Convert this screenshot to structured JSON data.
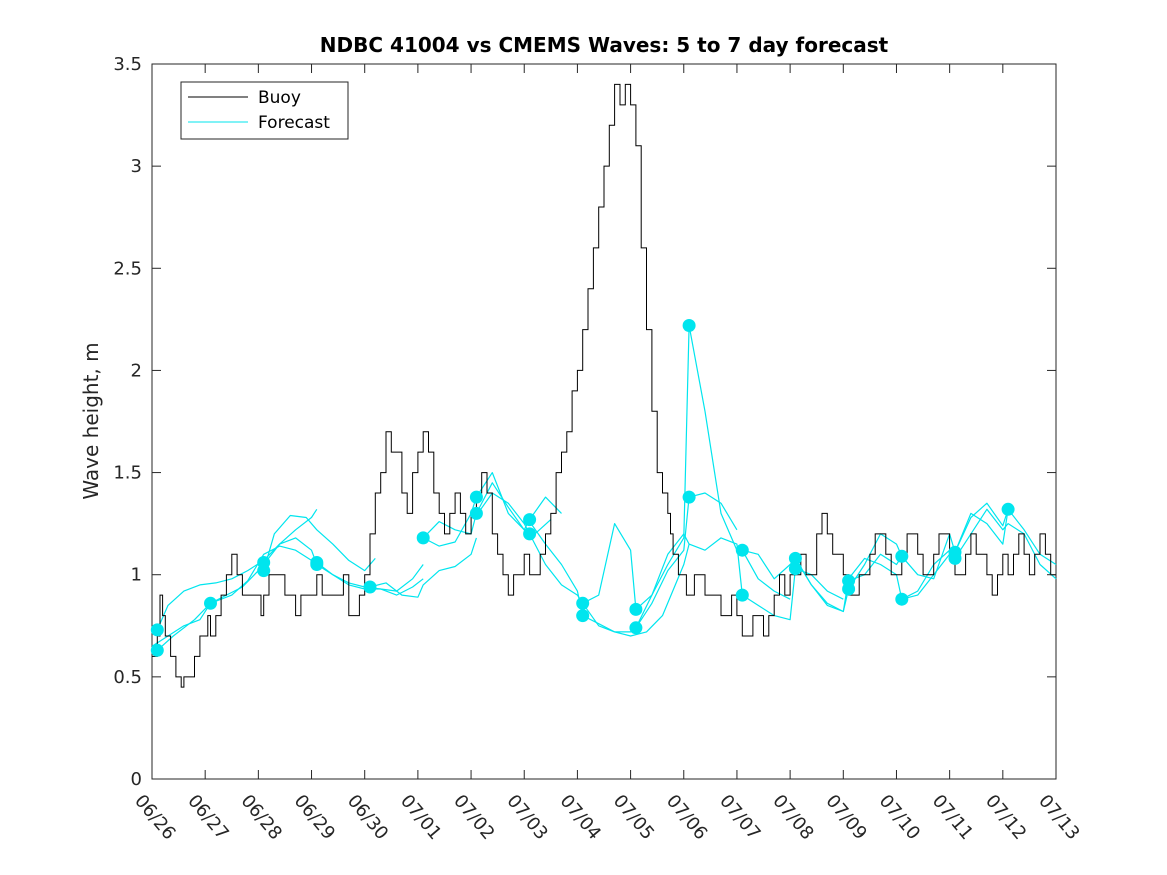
{
  "chart_data": {
    "type": "line",
    "title": "NDBC 41004 vs CMEMS Waves: 5 to 7 day forecast",
    "xlabel": "",
    "ylabel": "Wave height, m",
    "ylim": [
      0,
      3.5
    ],
    "yticks": [
      0,
      0.5,
      1,
      1.5,
      2,
      2.5,
      3,
      3.5
    ],
    "ytick_labels": [
      "0",
      "0.5",
      "1",
      "1.5",
      "2",
      "2.5",
      "3",
      "3.5"
    ],
    "x_unit": "days (06/26 = day 0)",
    "xlim": [
      0,
      17
    ],
    "xtick_labels": [
      "06/26",
      "06/27",
      "06/28",
      "06/29",
      "06/30",
      "07/01",
      "07/02",
      "07/03",
      "07/04",
      "07/05",
      "07/06",
      "07/07",
      "07/08",
      "07/09",
      "07/10",
      "07/11",
      "07/12",
      "07/13"
    ],
    "grid": false,
    "legend": {
      "position": "top-left",
      "entries": [
        "Buoy",
        "Forecast"
      ]
    },
    "colors": {
      "buoy": "#000000",
      "forecast": "#00e5ee",
      "axis": "#262626"
    },
    "buoy": {
      "name": "Buoy",
      "x": [
        0,
        0.1,
        0.15,
        0.2,
        0.25,
        0.35,
        0.45,
        0.5,
        0.55,
        0.6,
        0.7,
        0.8,
        0.9,
        1.0,
        1.05,
        1.1,
        1.2,
        1.3,
        1.4,
        1.5,
        1.6,
        1.7,
        1.8,
        1.9,
        2.0,
        2.05,
        2.1,
        2.2,
        2.3,
        2.4,
        2.5,
        2.6,
        2.7,
        2.8,
        2.9,
        3.0,
        3.1,
        3.2,
        3.3,
        3.4,
        3.5,
        3.6,
        3.7,
        3.8,
        3.9,
        4.0,
        4.1,
        4.2,
        4.3,
        4.4,
        4.5,
        4.6,
        4.7,
        4.8,
        4.9,
        5.0,
        5.1,
        5.2,
        5.3,
        5.4,
        5.5,
        5.6,
        5.7,
        5.8,
        5.9,
        6.0,
        6.1,
        6.2,
        6.3,
        6.4,
        6.5,
        6.6,
        6.7,
        6.8,
        6.9,
        7.0,
        7.1,
        7.2,
        7.3,
        7.4,
        7.5,
        7.6,
        7.7,
        7.8,
        7.9,
        8.0,
        8.1,
        8.2,
        8.3,
        8.4,
        8.5,
        8.6,
        8.7,
        8.8,
        8.9,
        9.0,
        9.1,
        9.2,
        9.3,
        9.4,
        9.5,
        9.6,
        9.7,
        9.75,
        9.8,
        9.85,
        9.9,
        9.95,
        10.0,
        10.05,
        10.1,
        10.15,
        10.2,
        10.3,
        10.4,
        10.5,
        10.6,
        10.7,
        10.8,
        10.9,
        11.0,
        11.1,
        11.2,
        11.3,
        11.4,
        11.5,
        11.6,
        11.7,
        11.8,
        11.9,
        12.0,
        12.1,
        12.2,
        12.3,
        12.4,
        12.5,
        12.6,
        12.7,
        12.8,
        12.9,
        13.0,
        13.1,
        13.2,
        13.3,
        13.4,
        13.5,
        13.6,
        13.7,
        13.8,
        13.9,
        14.0,
        14.1,
        14.2,
        14.3,
        14.4,
        14.5,
        14.6,
        14.7,
        14.8,
        14.9,
        15.0,
        15.1,
        15.2,
        15.3,
        15.4,
        15.5,
        15.6,
        15.7,
        15.8,
        15.9,
        16.0,
        16.1,
        16.2,
        16.3,
        16.4,
        16.5,
        16.6,
        16.7,
        16.8,
        16.9,
        17.0
      ],
      "values": [
        0.6,
        0.7,
        0.9,
        0.8,
        0.7,
        0.6,
        0.5,
        0.5,
        0.45,
        0.5,
        0.5,
        0.6,
        0.7,
        0.7,
        0.8,
        0.7,
        0.8,
        0.9,
        1.0,
        1.1,
        1.0,
        0.9,
        0.9,
        0.9,
        0.9,
        0.8,
        0.9,
        1.0,
        1.0,
        1.0,
        0.9,
        0.9,
        0.8,
        0.9,
        0.9,
        0.9,
        1.0,
        0.9,
        0.9,
        0.9,
        0.9,
        1.0,
        0.8,
        0.8,
        0.9,
        1.0,
        1.2,
        1.4,
        1.5,
        1.7,
        1.6,
        1.6,
        1.4,
        1.3,
        1.5,
        1.6,
        1.7,
        1.6,
        1.4,
        1.3,
        1.2,
        1.3,
        1.4,
        1.3,
        1.2,
        1.3,
        1.4,
        1.5,
        1.4,
        1.2,
        1.1,
        1.0,
        0.9,
        1.0,
        1.0,
        1.1,
        1.0,
        1.0,
        1.1,
        1.2,
        1.3,
        1.5,
        1.6,
        1.7,
        1.9,
        2.0,
        2.2,
        2.4,
        2.6,
        2.8,
        3.0,
        3.2,
        3.4,
        3.3,
        3.4,
        3.3,
        3.1,
        2.6,
        2.2,
        1.8,
        1.5,
        1.4,
        1.3,
        1.2,
        1.1,
        1.1,
        1.0,
        1.0,
        1.0,
        0.9,
        0.9,
        0.9,
        1.0,
        1.0,
        0.9,
        0.9,
        0.9,
        0.8,
        0.8,
        0.9,
        0.8,
        0.7,
        0.7,
        0.8,
        0.8,
        0.7,
        0.8,
        0.9,
        1.0,
        0.9,
        1.0,
        1.0,
        1.1,
        1.0,
        1.0,
        1.2,
        1.3,
        1.2,
        1.1,
        1.1,
        1.0,
        0.9,
        0.9,
        1.0,
        1.0,
        1.1,
        1.2,
        1.2,
        1.1,
        1.0,
        1.0,
        1.1,
        1.2,
        1.2,
        1.1,
        1.0,
        1.0,
        1.1,
        1.2,
        1.2,
        1.1,
        1.0,
        1.0,
        1.1,
        1.2,
        1.1,
        1.1,
        1.0,
        0.9,
        1.0,
        1.1,
        1.0,
        1.1,
        1.2,
        1.1,
        1.0,
        1.1,
        1.2,
        1.1,
        1.0,
        1.0
      ],
      "color": "#000000"
    },
    "forecasts": [
      {
        "name": "",
        "x": [
          0.1,
          0.3,
          0.6,
          0.9,
          1.2,
          1.5,
          1.8,
          2.1,
          2.4,
          2.7,
          3.0,
          3.1
        ],
        "values": [
          0.73,
          0.85,
          0.92,
          0.95,
          0.96,
          0.98,
          1.02,
          1.07,
          1.15,
          1.22,
          1.28,
          1.32
        ]
      },
      {
        "name": "",
        "x": [
          0.1,
          0.4,
          0.8,
          1.1,
          1.5,
          1.8,
          2.1,
          2.4,
          2.7,
          3.0
        ],
        "values": [
          0.63,
          0.7,
          0.78,
          0.86,
          0.9,
          0.97,
          1.1,
          1.14,
          1.12,
          1.07
        ]
      },
      {
        "name": "",
        "x": [
          0.0,
          0.3,
          0.6,
          0.9,
          1.1,
          1.4,
          1.7,
          2.0,
          2.1
        ],
        "values": [
          0.65,
          0.7,
          0.75,
          0.78,
          0.86,
          0.9,
          0.94,
          1.02,
          1.08
        ]
      },
      {
        "name": "",
        "x": [
          2.1,
          2.3,
          2.6,
          2.9,
          3.1,
          3.4,
          3.7,
          4.0,
          4.2
        ],
        "values": [
          1.02,
          1.2,
          1.29,
          1.28,
          1.22,
          1.15,
          1.07,
          1.02,
          1.08
        ]
      },
      {
        "name": "",
        "x": [
          2.1,
          2.4,
          2.7,
          3.0,
          3.1,
          3.4,
          3.7,
          4.0,
          4.3,
          4.6,
          4.9,
          5.1
        ],
        "values": [
          1.05,
          1.15,
          1.18,
          1.12,
          1.05,
          1.0,
          0.96,
          0.94,
          0.93,
          0.92,
          0.98,
          1.05
        ]
      },
      {
        "name": "",
        "x": [
          3.1,
          3.4,
          3.7,
          4.0,
          4.3,
          4.6,
          4.9,
          5.1
        ],
        "values": [
          1.06,
          1.0,
          0.95,
          0.93,
          0.93,
          0.9,
          0.94,
          0.98
        ]
      },
      {
        "name": "",
        "x": [
          4.1,
          4.4,
          4.7,
          5.0,
          5.1,
          5.4,
          5.7,
          6.0,
          6.1
        ],
        "values": [
          0.94,
          0.96,
          0.9,
          0.89,
          0.95,
          1.02,
          1.04,
          1.1,
          1.18
        ]
      },
      {
        "name": "",
        "x": [
          5.1,
          5.4,
          5.7,
          6.0,
          6.1,
          6.4,
          6.7,
          7.0,
          7.2,
          7.5
        ],
        "values": [
          1.18,
          1.26,
          1.22,
          1.2,
          1.3,
          1.45,
          1.33,
          1.22,
          1.2,
          1.27
        ]
      },
      {
        "name": "",
        "x": [
          5.1,
          5.4,
          5.7,
          6.0,
          6.1,
          6.4,
          6.7,
          7.0,
          7.1,
          7.4,
          7.7
        ],
        "values": [
          1.18,
          1.14,
          1.16,
          1.3,
          1.38,
          1.5,
          1.3,
          1.22,
          1.27,
          1.38,
          1.3
        ]
      },
      {
        "name": "",
        "x": [
          6.1,
          6.4,
          6.7,
          7.0,
          7.1,
          7.4,
          7.7,
          8.0,
          8.1,
          8.4,
          8.7,
          9.0,
          9.3,
          9.6,
          10.0,
          10.1
        ],
        "values": [
          1.29,
          1.4,
          1.35,
          1.25,
          1.2,
          1.05,
          0.95,
          0.9,
          0.86,
          0.75,
          0.72,
          0.7,
          0.72,
          0.8,
          1.05,
          1.15
        ]
      },
      {
        "name": "",
        "x": [
          7.1,
          7.4,
          7.7,
          8.0,
          8.1,
          8.4,
          8.7,
          9.0,
          9.1,
          9.4,
          9.7,
          10.0,
          10.1,
          10.4,
          10.7,
          11.0
        ],
        "values": [
          1.26,
          1.15,
          1.05,
          0.92,
          0.8,
          0.76,
          0.72,
          0.72,
          0.74,
          0.86,
          1.02,
          1.12,
          1.38,
          1.4,
          1.35,
          1.22
        ]
      },
      {
        "name": "",
        "x": [
          8.1,
          8.4,
          8.7,
          9.0,
          9.1,
          9.4,
          9.7,
          10.0,
          10.1,
          10.4,
          10.7,
          11.0,
          11.1,
          11.4,
          11.7,
          12.0
        ],
        "values": [
          0.86,
          0.9,
          1.25,
          1.12,
          0.83,
          0.9,
          1.05,
          1.18,
          2.22,
          1.8,
          1.3,
          1.12,
          1.12,
          0.98,
          0.92,
          0.88
        ]
      },
      {
        "name": "",
        "x": [
          9.1,
          9.4,
          9.7,
          10.0,
          10.1,
          10.4,
          10.7,
          11.0,
          11.1,
          11.4,
          11.7,
          12.0,
          12.1,
          12.4,
          12.7,
          13.0
        ],
        "values": [
          0.74,
          0.9,
          1.1,
          1.2,
          1.15,
          1.12,
          1.18,
          1.15,
          0.9,
          0.85,
          0.8,
          0.78,
          1.03,
          1.0,
          0.92,
          0.88
        ]
      },
      {
        "name": "",
        "x": [
          11.1,
          11.4,
          11.7,
          12.0,
          12.1,
          12.4,
          12.7,
          13.0,
          13.1,
          13.4,
          13.7,
          14.0,
          14.1
        ],
        "values": [
          1.12,
          1.1,
          0.98,
          1.05,
          1.08,
          0.95,
          0.85,
          0.82,
          0.93,
          1.05,
          1.2,
          1.15,
          1.09
        ]
      },
      {
        "name": "",
        "x": [
          12.1,
          12.4,
          12.7,
          13.0,
          13.1,
          13.4,
          13.7,
          14.0,
          14.1,
          14.4,
          14.7,
          15.0,
          15.1
        ],
        "values": [
          1.08,
          0.95,
          0.86,
          0.82,
          0.98,
          1.08,
          1.05,
          1.0,
          0.88,
          0.92,
          1.05,
          1.12,
          1.08
        ]
      },
      {
        "name": "",
        "x": [
          13.1,
          13.4,
          13.7,
          14.0,
          14.1,
          14.4,
          14.7,
          15.0,
          15.1,
          15.4,
          15.7,
          16.0,
          16.1
        ],
        "values": [
          0.97,
          1.0,
          1.1,
          1.05,
          1.09,
          1.0,
          0.98,
          1.2,
          1.11,
          1.3,
          1.25,
          1.15,
          1.32
        ]
      },
      {
        "name": "",
        "x": [
          14.1,
          14.4,
          14.7,
          15.0,
          15.1,
          15.4,
          15.7,
          16.0,
          16.1,
          16.4,
          16.7,
          17.0
        ],
        "values": [
          0.88,
          0.9,
          1.0,
          1.1,
          1.08,
          1.2,
          1.32,
          1.22,
          1.25,
          1.2,
          1.05,
          0.98
        ]
      },
      {
        "name": "",
        "x": [
          15.1,
          15.4,
          15.7,
          16.0,
          16.1,
          16.4,
          16.7,
          17.0
        ],
        "values": [
          1.11,
          1.28,
          1.35,
          1.24,
          1.32,
          1.22,
          1.1,
          1.05
        ]
      }
    ],
    "forecast_color": "#00e5ee",
    "markers": [
      {
        "x": 0.1,
        "y": 0.73
      },
      {
        "x": 0.1,
        "y": 0.63
      },
      {
        "x": 1.1,
        "y": 0.86
      },
      {
        "x": 2.1,
        "y": 1.06
      },
      {
        "x": 2.1,
        "y": 1.02
      },
      {
        "x": 3.1,
        "y": 1.06
      },
      {
        "x": 3.1,
        "y": 1.05
      },
      {
        "x": 4.1,
        "y": 0.94
      },
      {
        "x": 5.1,
        "y": 1.18
      },
      {
        "x": 6.1,
        "y": 1.38
      },
      {
        "x": 6.1,
        "y": 1.3
      },
      {
        "x": 7.1,
        "y": 1.27
      },
      {
        "x": 7.1,
        "y": 1.2
      },
      {
        "x": 8.1,
        "y": 0.86
      },
      {
        "x": 8.1,
        "y": 0.8
      },
      {
        "x": 9.1,
        "y": 0.83
      },
      {
        "x": 9.1,
        "y": 0.74
      },
      {
        "x": 10.1,
        "y": 2.22
      },
      {
        "x": 10.1,
        "y": 1.38
      },
      {
        "x": 11.1,
        "y": 1.12
      },
      {
        "x": 11.1,
        "y": 0.9
      },
      {
        "x": 12.1,
        "y": 1.08
      },
      {
        "x": 12.1,
        "y": 1.03
      },
      {
        "x": 13.1,
        "y": 0.97
      },
      {
        "x": 13.1,
        "y": 0.93
      },
      {
        "x": 14.1,
        "y": 1.09
      },
      {
        "x": 14.1,
        "y": 0.88
      },
      {
        "x": 15.1,
        "y": 1.11
      },
      {
        "x": 15.1,
        "y": 1.08
      },
      {
        "x": 16.1,
        "y": 1.32
      }
    ]
  }
}
